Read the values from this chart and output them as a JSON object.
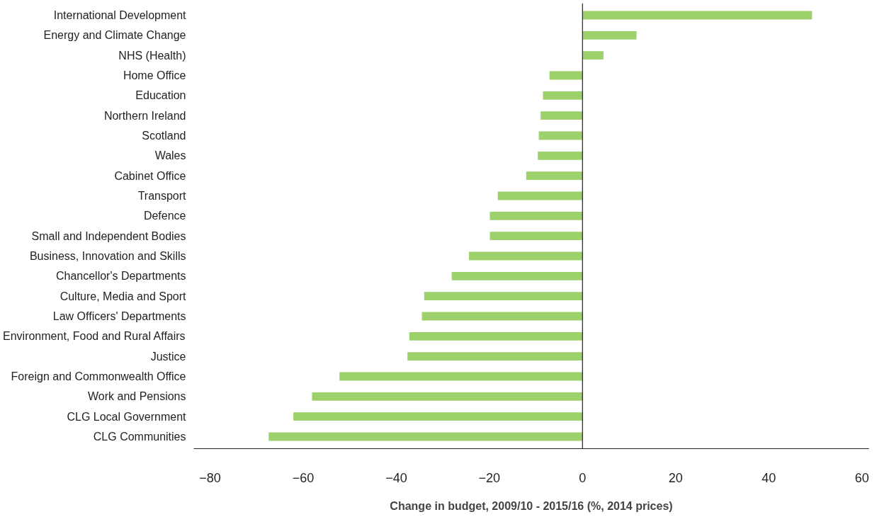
{
  "chart_data": {
    "type": "bar",
    "orientation": "horizontal",
    "xlabel": "Change in budget, 2009/10 - 2015/16 (%, 2014 prices)",
    "categories": [
      "International Development",
      "Energy and Climate Change",
      "NHS (Health)",
      "Home Office",
      "Education",
      "Northern Ireland",
      "Scotland",
      "Wales",
      "Cabinet Office",
      "Transport",
      "Defence",
      "Small and Independent Bodies",
      "Business, Innovation and Skills",
      "Chancellor's Departments",
      "Culture, Media and Sport",
      "Law Officers' Departments",
      "Environment, Food and Rural Affairs",
      "Justice",
      "Foreign and Commonwealth Office",
      "Work and Pensions",
      "CLG Local Government",
      "CLG Communities"
    ],
    "values": [
      49.3,
      11.6,
      4.5,
      -7.1,
      -8.5,
      -9.0,
      -9.4,
      -9.6,
      -12.1,
      -18.2,
      -19.9,
      -19.9,
      -24.4,
      -28.1,
      -34.0,
      -34.5,
      -37.2,
      -37.6,
      -52.2,
      -58.1,
      -62.1,
      -67.4
    ],
    "color": "#9dd16b",
    "xlim": [
      -83.5,
      61.5
    ],
    "xticks": [
      -80,
      -60,
      -40,
      -20,
      0,
      20,
      40,
      60
    ]
  }
}
